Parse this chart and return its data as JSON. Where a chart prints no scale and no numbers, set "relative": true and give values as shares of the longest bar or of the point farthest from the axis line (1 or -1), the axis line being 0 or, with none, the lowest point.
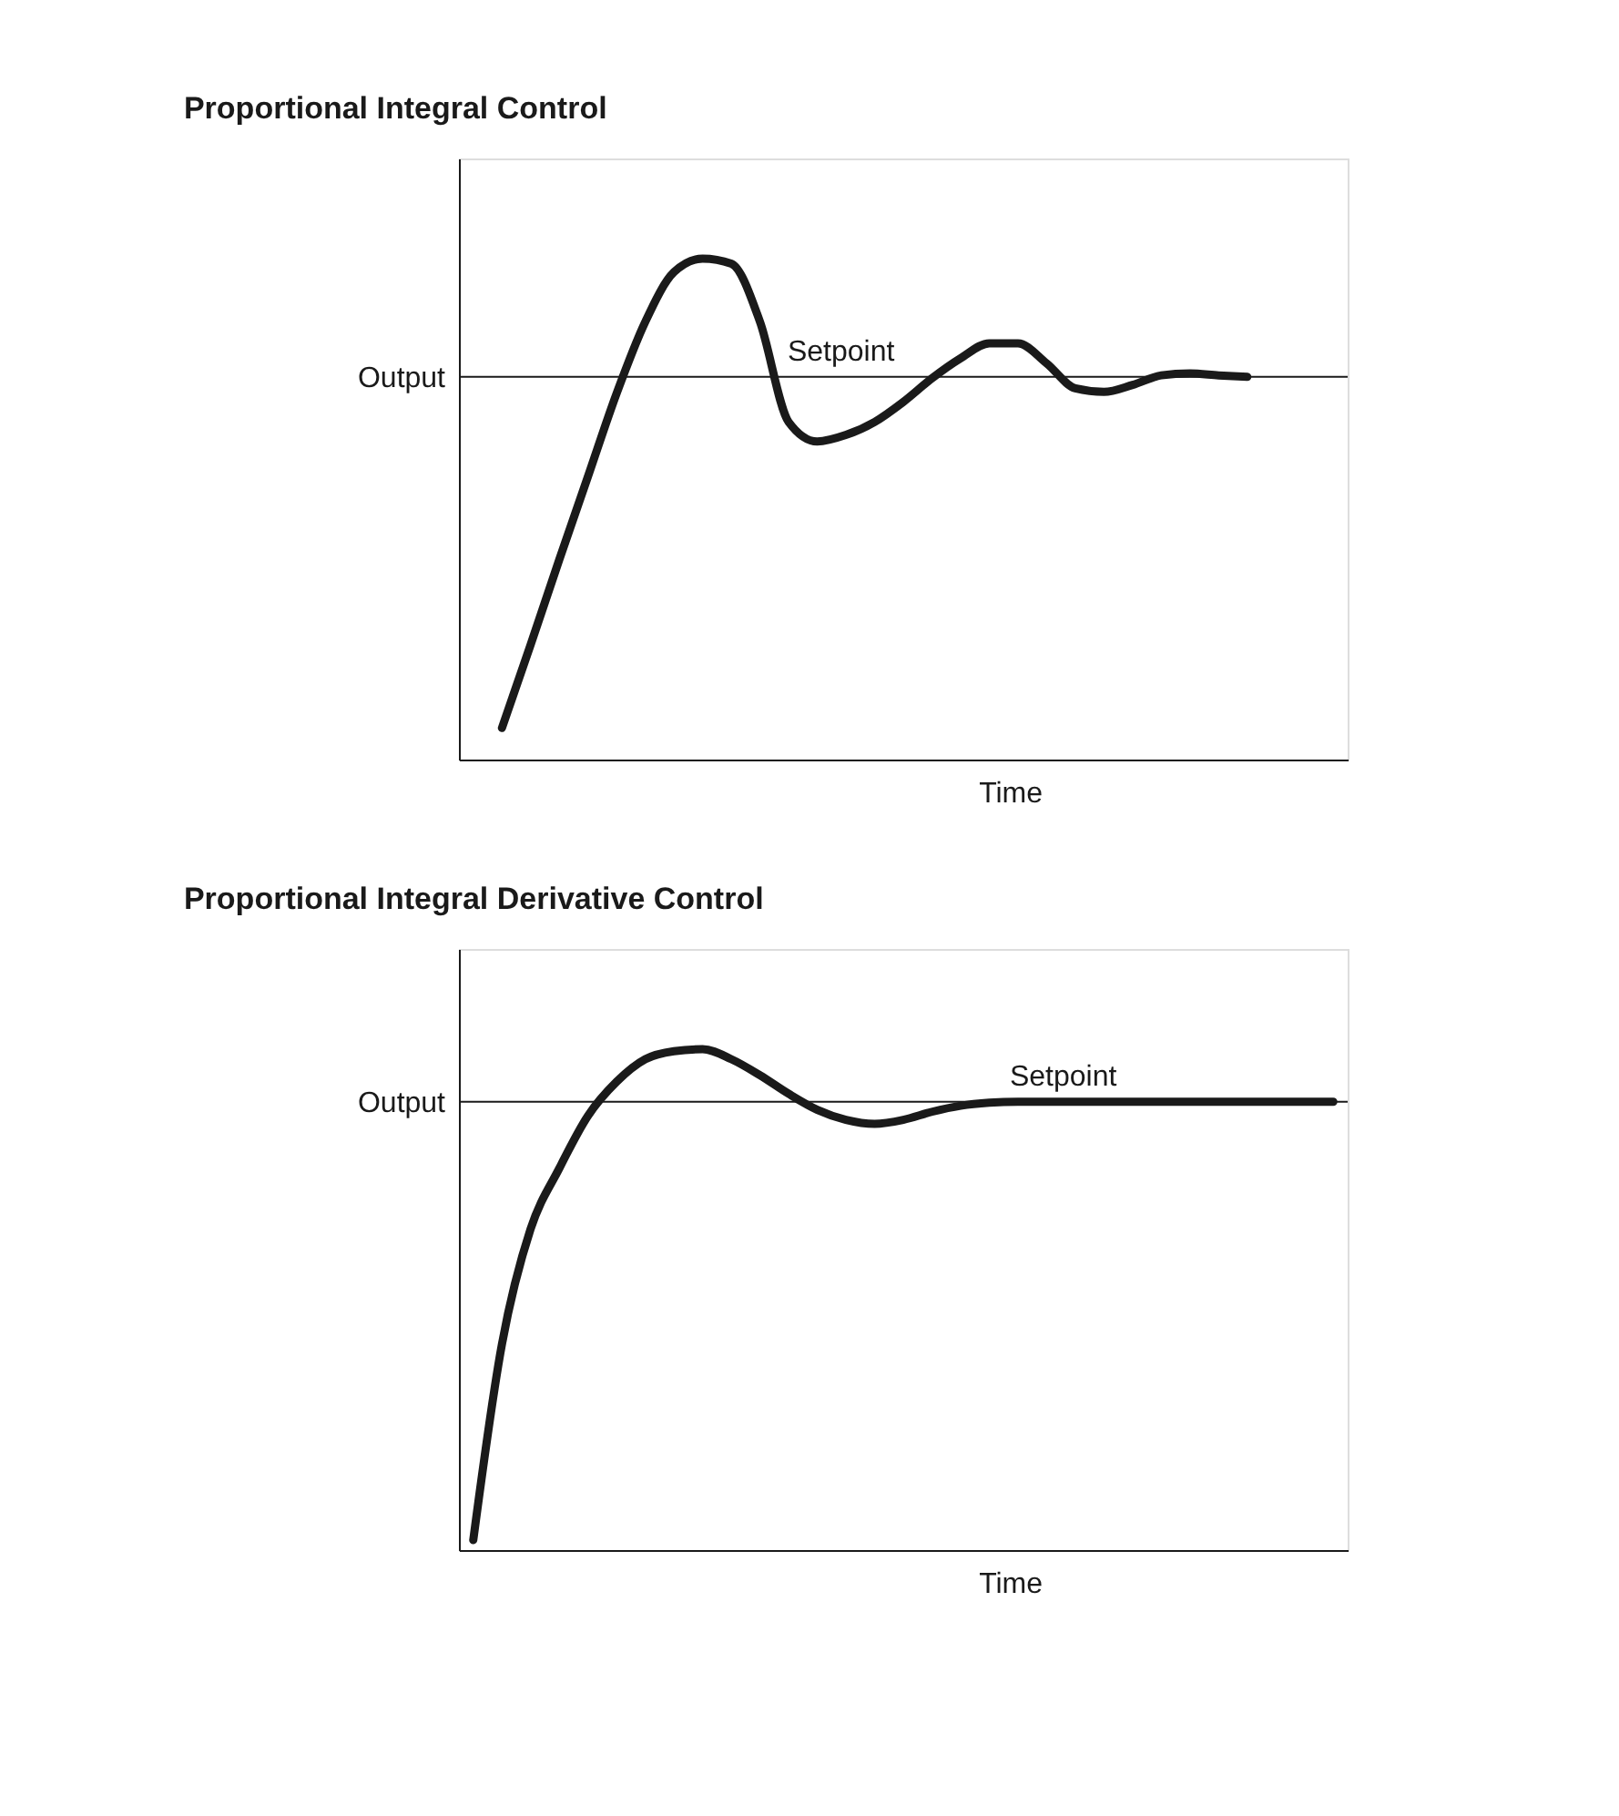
{
  "chart_data": [
    {
      "type": "line",
      "title": "Proportional Integral Control",
      "xlabel": "Time",
      "ylabel": "Output",
      "relative": true,
      "tick_labels": false,
      "grid": false,
      "line_style": "solid",
      "categories": [
        null,
        null,
        null,
        null,
        null,
        null,
        null,
        null,
        null,
        null,
        null,
        null,
        null,
        null,
        null,
        null,
        null,
        null,
        null,
        null,
        null,
        null,
        null,
        null,
        null,
        null,
        null,
        null,
        null,
        null,
        null
      ],
      "series": [
        {
          "color": "#1a1a1a",
          "values": [
            null,
            0.063,
            0.229,
            0.399,
            0.565,
            0.731,
            0.874,
            0.973,
            1.0,
            0.99,
            0.874,
            0.674,
            0.635,
            0.648,
            0.674,
            0.714,
            0.761,
            0.801,
            0.831,
            0.831,
            0.791,
            0.741,
            0.734,
            0.748,
            0.767,
            0.771,
            0.767,
            0.764,
            null,
            null,
            null
          ]
        }
      ],
      "ref_lines": [
        {
          "axis": "y",
          "value": 0.764,
          "label": "Setpoint",
          "color": "#1a1a1a"
        }
      ]
    },
    {
      "type": "line",
      "title": "Proportional Integral Derivative Control",
      "xlabel": "Time",
      "ylabel": "Output",
      "relative": true,
      "tick_labels": false,
      "grid": false,
      "line_style": "solid",
      "categories": [
        null,
        null,
        null,
        null,
        null,
        null,
        null,
        null,
        null,
        null,
        null,
        null,
        null,
        null,
        null,
        null,
        null,
        null,
        null,
        null,
        null,
        null,
        null,
        null,
        null,
        null,
        null,
        null,
        null,
        null,
        null
      ],
      "series": [
        {
          "color": "#1a1a1a",
          "values": [
            0.02,
            0.411,
            0.641,
            0.762,
            0.867,
            0.935,
            0.98,
            0.996,
            1.0,
            0.98,
            0.948,
            0.911,
            0.879,
            0.859,
            0.851,
            0.859,
            0.875,
            0.887,
            0.893,
            0.895,
            0.895,
            0.895,
            0.895,
            0.895,
            0.895,
            0.895,
            0.895,
            0.895,
            0.895,
            0.895,
            0.895
          ]
        }
      ],
      "ref_lines": [
        {
          "axis": "y",
          "value": 0.895,
          "label": "Setpoint",
          "color": "#1a1a1a"
        }
      ]
    }
  ]
}
